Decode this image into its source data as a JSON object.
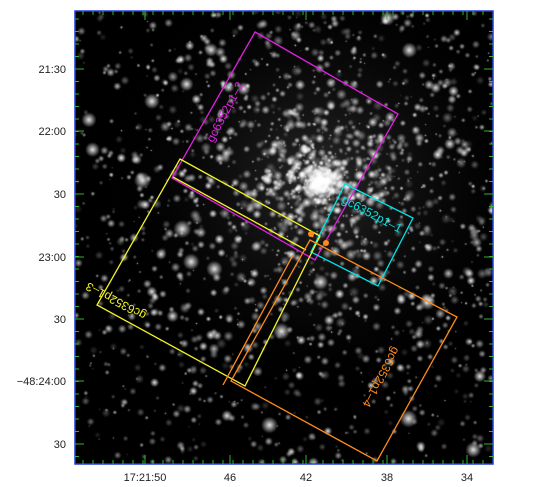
{
  "image": {
    "frame_color": "#1f3fd6",
    "tick_color": "#2fb52f",
    "background": "#000000"
  },
  "axes": {
    "dec_ticks": [
      "21:30",
      "22:00",
      "30",
      "23:00",
      "30",
      "−48:24:00",
      "30"
    ],
    "ra_ticks": [
      "17:21:50",
      "46",
      "42",
      "38",
      "34"
    ]
  },
  "fields": [
    {
      "id": "pos2",
      "label": "gc6352p1–2",
      "color": "#e020e0"
    },
    {
      "id": "pos1",
      "label": "gc6352p1–1",
      "color": "#00e5e5"
    },
    {
      "id": "pos3",
      "label": "gc6352p1–3",
      "color": "#f2f22a"
    },
    {
      "id": "pos4",
      "label": "gc6352p1–4",
      "color": "#ff8c1a"
    }
  ]
}
